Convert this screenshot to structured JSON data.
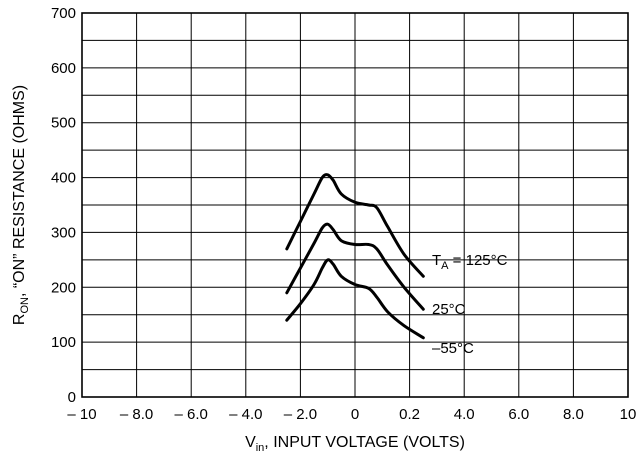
{
  "chart_data": {
    "type": "line",
    "xlabel": {
      "main": "V",
      "sub": "in",
      "rest": ", INPUT VOLTAGE (VOLTS)"
    },
    "ylabel": {
      "main": "R",
      "sub": "ON",
      "rest": ", “ON” RESISTANCE (OHMS)"
    },
    "x_tick_labels": [
      "– 10",
      "– 8.0",
      "– 6.0",
      "– 4.0",
      "– 2.0",
      "0",
      "0.2",
      "4.0",
      "6.0",
      "8.0",
      "10"
    ],
    "y_tick_labels": [
      "0",
      "100",
      "200",
      "300",
      "400",
      "500",
      "600",
      "700"
    ],
    "xlim": [
      -10,
      10
    ],
    "ylim": [
      0,
      700
    ],
    "grid": true,
    "series": [
      {
        "name": {
          "main": "T",
          "sub": "A",
          "rest": " = 125°C"
        },
        "x": [
          -2.5,
          -2.0,
          -1.5,
          -1.2,
          -1.0,
          -0.8,
          -0.5,
          0.0,
          0.5,
          0.8,
          1.2,
          1.8,
          2.5
        ],
        "y": [
          270,
          320,
          370,
          400,
          405,
          395,
          370,
          355,
          350,
          345,
          310,
          260,
          220
        ]
      },
      {
        "name": {
          "main": "25°C",
          "sub": "",
          "rest": ""
        },
        "x": [
          -2.5,
          -2.0,
          -1.5,
          -1.2,
          -1.0,
          -0.8,
          -0.5,
          0.0,
          0.5,
          0.8,
          1.2,
          1.8,
          2.5
        ],
        "y": [
          190,
          235,
          280,
          308,
          315,
          305,
          285,
          278,
          278,
          270,
          240,
          200,
          160
        ]
      },
      {
        "name": {
          "main": "–55°C",
          "sub": "",
          "rest": ""
        },
        "x": [
          -2.5,
          -2.0,
          -1.5,
          -1.2,
          -1.0,
          -0.8,
          -0.5,
          0.0,
          0.5,
          0.8,
          1.2,
          1.8,
          2.5
        ],
        "y": [
          140,
          170,
          205,
          235,
          250,
          242,
          220,
          205,
          198,
          182,
          155,
          130,
          108
        ]
      }
    ]
  }
}
